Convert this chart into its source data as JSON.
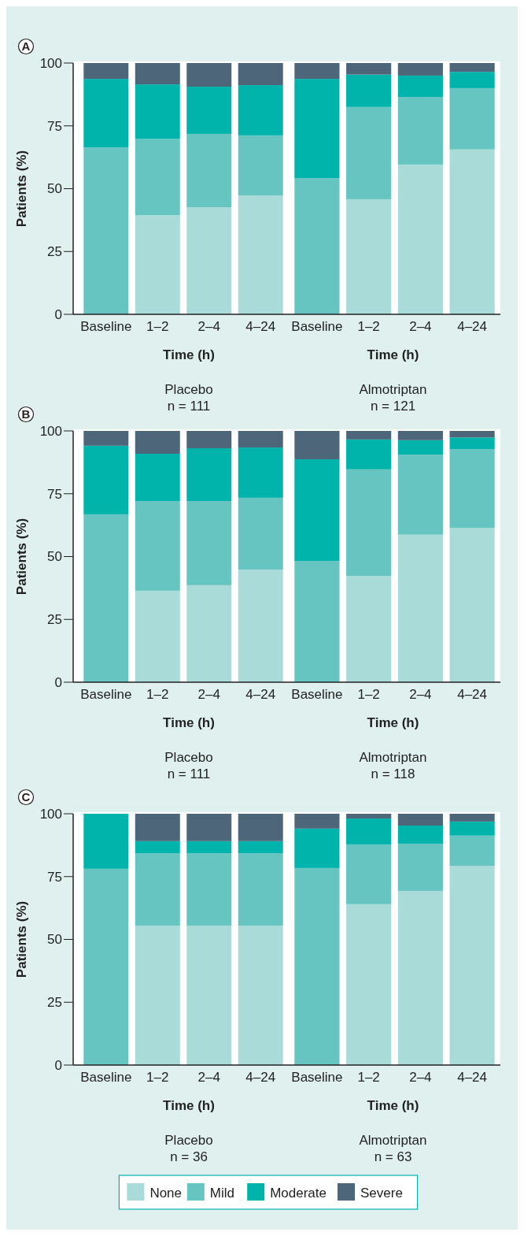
{
  "chart_data": [
    {
      "type": "bar",
      "title": "A",
      "stacked": true,
      "categories": [
        "Baseline",
        "1–2",
        "2–4",
        "4–24"
      ],
      "xlabel": "Time (h)",
      "ylabel": "Patients (%)",
      "ylim": [
        0,
        100
      ],
      "yticks": [
        0,
        25,
        50,
        75,
        100
      ],
      "annotations": [
        "Placebo",
        "n = 111"
      ],
      "series": [
        {
          "color": "#a9dcd9",
          "values": [
            0,
            39.5,
            42.6,
            47.3
          ]
        },
        {
          "color": "#66c5c1",
          "values": [
            66.4,
            30.3,
            29.2,
            23.9
          ]
        },
        {
          "color": "#00b4ab",
          "values": [
            27.3,
            21.7,
            18.8,
            20.0
          ]
        },
        {
          "color": "#4e6679",
          "values": [
            6.3,
            8.5,
            9.4,
            8.8
          ]
        }
      ]
    },
    {
      "type": "bar",
      "stacked": true,
      "categories": [
        "Baseline",
        "1–2",
        "2–4",
        "4–24"
      ],
      "xlabel": "Time (h)",
      "ylim": [
        0,
        100
      ],
      "yticks": [
        0,
        25,
        50,
        75,
        100
      ],
      "tick_labels": "x",
      "annotations": [
        "Almotriptan",
        "n = 121"
      ],
      "series": [
        {
          "color": "#a9dcd9",
          "values": [
            0,
            45.8,
            59.6,
            65.6
          ]
        },
        {
          "color": "#66c5c1",
          "values": [
            54.2,
            36.7,
            26.9,
            24.4
          ]
        },
        {
          "color": "#00b4ab",
          "values": [
            39.5,
            12.9,
            8.5,
            6.5
          ]
        },
        {
          "color": "#4e6679",
          "values": [
            6.3,
            4.6,
            5.0,
            3.5
          ]
        }
      ]
    },
    {
      "type": "bar",
      "title": "B",
      "stacked": true,
      "categories": [
        "Baseline",
        "1–2",
        "2–4",
        "4–24"
      ],
      "xlabel": "Time (h)",
      "ylabel": "Patients (%)",
      "ylim": [
        0,
        100
      ],
      "yticks": [
        0,
        25,
        50,
        75,
        100
      ],
      "annotations": [
        "Placebo",
        "n = 111"
      ],
      "series": [
        {
          "color": "#a9dcd9",
          "values": [
            0,
            36.4,
            38.6,
            44.8
          ]
        },
        {
          "color": "#66c5c1",
          "values": [
            66.8,
            35.7,
            33.5,
            28.6
          ]
        },
        {
          "color": "#00b4ab",
          "values": [
            27.3,
            18.8,
            21.0,
            20.0
          ]
        },
        {
          "color": "#4e6679",
          "values": [
            5.9,
            9.1,
            6.9,
            6.6
          ]
        }
      ]
    },
    {
      "type": "bar",
      "stacked": true,
      "categories": [
        "Baseline",
        "1–2",
        "2–4",
        "4–24"
      ],
      "xlabel": "Time (h)",
      "ylim": [
        0,
        100
      ],
      "yticks": [
        0,
        25,
        50,
        75,
        100
      ],
      "tick_labels": "x",
      "annotations": [
        "Almotriptan",
        "n = 118"
      ],
      "series": [
        {
          "color": "#a9dcd9",
          "values": [
            0,
            42.3,
            58.7,
            61.4
          ]
        },
        {
          "color": "#66c5c1",
          "values": [
            48.2,
            42.4,
            31.9,
            31.4
          ]
        },
        {
          "color": "#00b4ab",
          "values": [
            40.5,
            11.9,
            5.7,
            4.6
          ]
        },
        {
          "color": "#4e6679",
          "values": [
            11.3,
            3.4,
            3.7,
            2.6
          ]
        }
      ]
    },
    {
      "type": "bar",
      "title": "C",
      "stacked": true,
      "categories": [
        "Baseline",
        "1–2",
        "2–4",
        "4–24"
      ],
      "xlabel": "Time (h)",
      "ylabel": "Patients (%)",
      "ylim": [
        0,
        100
      ],
      "yticks": [
        0,
        25,
        50,
        75,
        100
      ],
      "annotations": [
        "Placebo",
        "n = 36"
      ],
      "series": [
        {
          "color": "#a9dcd9",
          "values": [
            0,
            55.5,
            55.5,
            55.5
          ]
        },
        {
          "color": "#66c5c1",
          "values": [
            78.1,
            28.8,
            28.8,
            28.8
          ]
        },
        {
          "color": "#00b4ab",
          "values": [
            21.9,
            4.8,
            4.8,
            4.8
          ]
        },
        {
          "color": "#4e6679",
          "values": [
            0,
            10.9,
            10.9,
            10.9
          ]
        }
      ]
    },
    {
      "type": "bar",
      "stacked": true,
      "categories": [
        "Baseline",
        "1–2",
        "2–4",
        "4–24"
      ],
      "xlabel": "Time (h)",
      "ylim": [
        0,
        100
      ],
      "yticks": [
        0,
        25,
        50,
        75,
        100
      ],
      "tick_labels": "x",
      "legend": "bottom",
      "annotations": [
        "Almotriptan",
        "n = 63"
      ],
      "series": [
        {
          "name": "None",
          "color": "#a9dcd9",
          "values": [
            0,
            64.0,
            69.3,
            79.3
          ]
        },
        {
          "name": "Mild",
          "color": "#66c5c1",
          "values": [
            78.4,
            23.8,
            18.8,
            12.0
          ]
        },
        {
          "name": "Moderate",
          "color": "#00b4ab",
          "values": [
            15.7,
            10.3,
            7.2,
            5.6
          ]
        },
        {
          "name": "Severe",
          "color": "#4e6679",
          "values": [
            5.9,
            1.9,
            4.7,
            3.1
          ]
        }
      ]
    }
  ]
}
